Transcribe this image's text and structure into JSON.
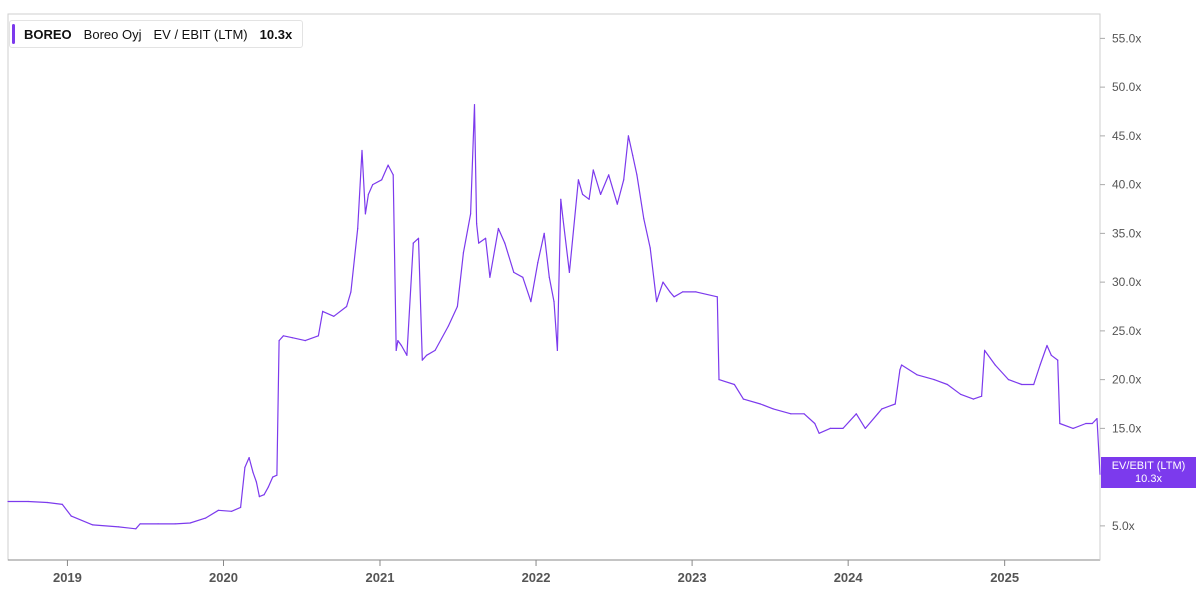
{
  "legend": {
    "ticker": "BOREO",
    "company": "Boreo Oyj",
    "metric": "EV / EBIT (LTM)",
    "value": "10.3x"
  },
  "value_tag": {
    "label": "EV/EBIT (LTM)",
    "value": "10.3x"
  },
  "colors": {
    "line": "#7c3aed",
    "tag": "#7c3aed",
    "axis": "#555555"
  },
  "chart_data": {
    "type": "line",
    "xlabel": "",
    "ylabel": "",
    "ylim": [
      1.5,
      57.5
    ],
    "x_range": [
      "2018-08-15",
      "2025-08-12"
    ],
    "y_ticks": [
      5,
      15,
      20,
      25,
      30,
      35,
      40,
      45,
      50,
      55
    ],
    "y_tick_labels": [
      "5.0x",
      "15.0x",
      "20.0x",
      "25.0x",
      "30.0x",
      "35.0x",
      "40.0x",
      "45.0x",
      "50.0x",
      "55.0x"
    ],
    "x_ticks": [
      "2019-01-01",
      "2020-01-01",
      "2021-01-01",
      "2022-01-01",
      "2023-01-01",
      "2024-01-01",
      "2025-01-01"
    ],
    "x_tick_labels": [
      "2019",
      "2020",
      "2021",
      "2022",
      "2023",
      "2024",
      "2025"
    ],
    "grid": false,
    "legend_position": "top-left",
    "series": [
      {
        "name": "EV / EBIT (LTM)",
        "x": [
          "2018-08-15",
          "2018-10-01",
          "2018-11-15",
          "2018-12-20",
          "2019-01-10",
          "2019-03-01",
          "2019-05-01",
          "2019-06-10",
          "2019-06-20",
          "2019-08-01",
          "2019-09-10",
          "2019-10-15",
          "2019-11-20",
          "2019-12-20",
          "2020-01-20",
          "2020-02-10",
          "2020-02-20",
          "2020-03-01",
          "2020-03-10",
          "2020-03-18",
          "2020-03-25",
          "2020-04-05",
          "2020-04-15",
          "2020-04-25",
          "2020-05-05",
          "2020-05-10",
          "2020-05-20",
          "2020-06-10",
          "2020-07-10",
          "2020-08-10",
          "2020-08-20",
          "2020-09-15",
          "2020-10-15",
          "2020-10-25",
          "2020-11-10",
          "2020-11-20",
          "2020-11-28",
          "2020-12-05",
          "2020-12-15",
          "2021-01-05",
          "2021-01-20",
          "2021-02-01",
          "2021-02-08",
          "2021-02-12",
          "2021-02-20",
          "2021-03-05",
          "2021-03-20",
          "2021-04-01",
          "2021-04-10",
          "2021-04-20",
          "2021-05-10",
          "2021-06-10",
          "2021-07-01",
          "2021-07-15",
          "2021-08-01",
          "2021-08-10",
          "2021-08-15",
          "2021-08-20",
          "2021-09-05",
          "2021-09-15",
          "2021-10-05",
          "2021-10-20",
          "2021-11-10",
          "2021-12-01",
          "2021-12-20",
          "2022-01-05",
          "2022-01-20",
          "2022-02-01",
          "2022-02-12",
          "2022-02-20",
          "2022-02-28",
          "2022-03-05",
          "2022-03-20",
          "2022-04-10",
          "2022-04-20",
          "2022-05-05",
          "2022-05-15",
          "2022-06-01",
          "2022-06-20",
          "2022-07-10",
          "2022-07-25",
          "2022-08-05",
          "2022-08-15",
          "2022-08-25",
          "2022-09-10",
          "2022-09-25",
          "2022-10-10",
          "2022-10-25",
          "2022-11-10",
          "2022-11-20",
          "2022-12-10",
          "2023-01-10",
          "2023-03-01",
          "2023-03-05",
          "2023-04-10",
          "2023-05-01",
          "2023-06-10",
          "2023-07-10",
          "2023-08-20",
          "2023-09-20",
          "2023-10-15",
          "2023-10-25",
          "2023-11-20",
          "2023-12-20",
          "2024-01-20",
          "2024-02-10",
          "2024-03-10",
          "2024-03-20",
          "2024-04-20",
          "2024-05-01",
          "2024-05-05",
          "2024-06-10",
          "2024-07-20",
          "2024-08-20",
          "2024-09-20",
          "2024-10-20",
          "2024-11-08",
          "2024-11-15",
          "2024-12-10",
          "2025-01-10",
          "2025-02-10",
          "2025-03-10",
          "2025-03-25",
          "2025-04-10",
          "2025-04-20",
          "2025-05-05",
          "2025-05-10",
          "2025-06-10",
          "2025-07-10",
          "2025-07-25",
          "2025-08-05",
          "2025-08-12"
        ],
        "y": [
          7.5,
          7.5,
          7.4,
          7.2,
          6.0,
          5.1,
          4.9,
          4.7,
          5.2,
          5.2,
          5.2,
          5.3,
          5.8,
          6.6,
          6.5,
          6.9,
          11.0,
          12.0,
          10.5,
          9.5,
          8.0,
          8.2,
          9.0,
          10.0,
          10.2,
          24.0,
          24.5,
          24.3,
          24.0,
          24.5,
          27.0,
          26.5,
          27.5,
          29.0,
          35.5,
          43.5,
          37.0,
          39.0,
          40.0,
          40.5,
          42.0,
          41.0,
          23.0,
          24.0,
          23.5,
          22.5,
          34.0,
          34.5,
          22.0,
          22.5,
          23.0,
          25.5,
          27.5,
          33.0,
          37.0,
          48.2,
          36.0,
          34.0,
          34.5,
          30.5,
          35.5,
          34.0,
          31.0,
          30.5,
          28.0,
          32.0,
          35.0,
          30.5,
          28.0,
          23.0,
          38.5,
          36.5,
          31.0,
          40.5,
          39.0,
          38.5,
          41.5,
          39.0,
          41.0,
          38.0,
          40.5,
          45.0,
          43.0,
          41.0,
          36.5,
          33.5,
          28.0,
          30.0,
          29.0,
          28.5,
          29.0,
          29.0,
          28.5,
          20.0,
          19.5,
          18.0,
          17.5,
          17.0,
          16.5,
          16.5,
          15.5,
          14.5,
          15.0,
          15.0,
          16.5,
          15.0,
          16.5,
          17.0,
          17.5,
          21.0,
          21.5,
          20.5,
          20.0,
          19.5,
          18.5,
          18.0,
          18.3,
          23.0,
          21.5,
          20.0,
          19.5,
          19.5,
          21.5,
          23.5,
          22.5,
          22.0,
          15.5,
          15.0,
          15.5,
          15.5,
          16.0,
          10.3
        ]
      }
    ]
  }
}
